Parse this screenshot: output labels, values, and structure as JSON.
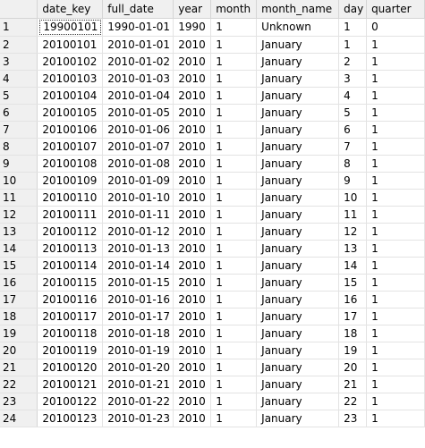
{
  "columns": [
    "",
    "date_key",
    "full_date",
    "year",
    "month",
    "month_name",
    "day",
    "quarter"
  ],
  "rows": [
    [
      "1",
      "19900101",
      "1990-01-01",
      "1990",
      "1",
      "Unknown",
      "1",
      "0"
    ],
    [
      "2",
      "20100101",
      "2010-01-01",
      "2010",
      "1",
      "January",
      "1",
      "1"
    ],
    [
      "3",
      "20100102",
      "2010-01-02",
      "2010",
      "1",
      "January",
      "2",
      "1"
    ],
    [
      "4",
      "20100103",
      "2010-01-03",
      "2010",
      "1",
      "January",
      "3",
      "1"
    ],
    [
      "5",
      "20100104",
      "2010-01-04",
      "2010",
      "1",
      "January",
      "4",
      "1"
    ],
    [
      "6",
      "20100105",
      "2010-01-05",
      "2010",
      "1",
      "January",
      "5",
      "1"
    ],
    [
      "7",
      "20100106",
      "2010-01-06",
      "2010",
      "1",
      "January",
      "6",
      "1"
    ],
    [
      "8",
      "20100107",
      "2010-01-07",
      "2010",
      "1",
      "January",
      "7",
      "1"
    ],
    [
      "9",
      "20100108",
      "2010-01-08",
      "2010",
      "1",
      "January",
      "8",
      "1"
    ],
    [
      "10",
      "20100109",
      "2010-01-09",
      "2010",
      "1",
      "January",
      "9",
      "1"
    ],
    [
      "11",
      "20100110",
      "2010-01-10",
      "2010",
      "1",
      "January",
      "10",
      "1"
    ],
    [
      "12",
      "20100111",
      "2010-01-11",
      "2010",
      "1",
      "January",
      "11",
      "1"
    ],
    [
      "13",
      "20100112",
      "2010-01-12",
      "2010",
      "1",
      "January",
      "12",
      "1"
    ],
    [
      "14",
      "20100113",
      "2010-01-13",
      "2010",
      "1",
      "January",
      "13",
      "1"
    ],
    [
      "15",
      "20100114",
      "2010-01-14",
      "2010",
      "1",
      "January",
      "14",
      "1"
    ],
    [
      "16",
      "20100115",
      "2010-01-15",
      "2010",
      "1",
      "January",
      "15",
      "1"
    ],
    [
      "17",
      "20100116",
      "2010-01-16",
      "2010",
      "1",
      "January",
      "16",
      "1"
    ],
    [
      "18",
      "20100117",
      "2010-01-17",
      "2010",
      "1",
      "January",
      "17",
      "1"
    ],
    [
      "19",
      "20100118",
      "2010-01-18",
      "2010",
      "1",
      "January",
      "18",
      "1"
    ],
    [
      "20",
      "20100119",
      "2010-01-19",
      "2010",
      "1",
      "January",
      "19",
      "1"
    ],
    [
      "21",
      "20100120",
      "2010-01-20",
      "2010",
      "1",
      "January",
      "20",
      "1"
    ],
    [
      "22",
      "20100121",
      "2010-01-21",
      "2010",
      "1",
      "January",
      "21",
      "1"
    ],
    [
      "23",
      "20100122",
      "2010-01-22",
      "2010",
      "1",
      "January",
      "22",
      "1"
    ],
    [
      "24",
      "20100123",
      "2010-01-23",
      "2010",
      "1",
      "January",
      "23",
      "1"
    ]
  ],
  "selected_cell": {
    "row": 0,
    "column": 1
  },
  "colors": {
    "header_background": "#f0f0f0",
    "grid_line": "#e3e3e3",
    "cell_background": "#ffffff"
  }
}
